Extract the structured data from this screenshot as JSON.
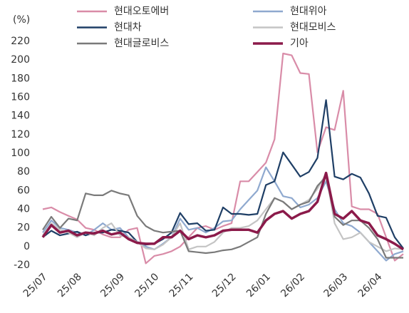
{
  "chart_data": {
    "type": "line",
    "y_unit": "(%)",
    "categories": [
      "25/07",
      null,
      null,
      null,
      "25/08",
      null,
      null,
      null,
      null,
      "25/09",
      null,
      null,
      null,
      "25/10",
      null,
      null,
      null,
      "25/11",
      null,
      null,
      null,
      null,
      "25/12",
      null,
      null,
      null,
      "26/01",
      null,
      null,
      null,
      "26/02",
      null,
      null,
      null,
      null,
      "26/03",
      null,
      null,
      null,
      "26/04",
      null,
      null,
      null
    ],
    "ylim": [
      -20,
      220
    ],
    "yticks": [
      -20,
      0,
      20,
      40,
      60,
      80,
      100,
      120,
      140,
      160,
      180,
      200,
      220
    ],
    "grid": false,
    "series": [
      {
        "name": "현대오토에버",
        "color": "#d98ca8",
        "values": [
          40,
          42,
          37,
          33,
          29,
          20,
          18,
          13,
          10,
          10,
          18,
          20,
          -18,
          -10,
          -8,
          -5,
          0,
          10,
          20,
          22,
          18,
          22,
          25,
          70,
          70,
          80,
          90,
          115,
          207,
          205,
          186,
          185,
          101,
          128,
          125,
          167,
          43,
          40,
          40,
          35,
          10,
          -15,
          -8
        ]
      },
      {
        "name": "현대위아",
        "color": "#8fa9cf",
        "values": [
          15,
          28,
          20,
          18,
          15,
          12,
          18,
          25,
          18,
          20,
          10,
          5,
          0,
          -3,
          3,
          10,
          30,
          18,
          20,
          15,
          20,
          27,
          28,
          40,
          50,
          60,
          85,
          70,
          54,
          52,
          42,
          45,
          52,
          70,
          40,
          25,
          22,
          15,
          5,
          -5,
          -15,
          -8,
          -5
        ]
      },
      {
        "name": "현대차",
        "color": "#1f3f66",
        "values": [
          10,
          17,
          12,
          14,
          16,
          12,
          15,
          15,
          18,
          17,
          15,
          5,
          2,
          3,
          8,
          15,
          36,
          24,
          25,
          17,
          18,
          42,
          35,
          35,
          34,
          35,
          66,
          70,
          101,
          88,
          75,
          80,
          95,
          157,
          75,
          72,
          78,
          74,
          57,
          33,
          31,
          10,
          -2
        ]
      },
      {
        "name": "현대모비스",
        "color": "#c4c4c4",
        "values": [
          12,
          25,
          18,
          15,
          10,
          15,
          12,
          20,
          25,
          12,
          10,
          5,
          -2,
          -3,
          2,
          10,
          25,
          -3,
          0,
          0,
          5,
          15,
          20,
          20,
          22,
          28,
          40,
          52,
          48,
          40,
          45,
          50,
          62,
          78,
          25,
          8,
          10,
          15,
          5,
          0,
          -5,
          -2,
          -3
        ]
      },
      {
        "name": "현대글로비스",
        "color": "#7a7a7a",
        "values": [
          18,
          32,
          20,
          30,
          28,
          57,
          55,
          55,
          60,
          57,
          55,
          33,
          22,
          17,
          15,
          16,
          17,
          -5,
          -6,
          -7,
          -6,
          -4,
          -3,
          0,
          5,
          10,
          35,
          52,
          48,
          40,
          45,
          48,
          65,
          75,
          32,
          23,
          28,
          28,
          20,
          8,
          -12,
          -12,
          -12
        ]
      },
      {
        "name": "기아",
        "color": "#8b1a4a",
        "width": 3.5,
        "values": [
          10,
          23,
          15,
          17,
          12,
          15,
          14,
          17,
          13,
          15,
          8,
          4,
          3,
          3,
          10,
          10,
          17,
          8,
          12,
          10,
          12,
          17,
          18,
          18,
          18,
          15,
          28,
          35,
          38,
          30,
          35,
          38,
          48,
          79,
          35,
          30,
          38,
          28,
          25,
          12,
          8,
          3,
          -3
        ]
      }
    ]
  }
}
